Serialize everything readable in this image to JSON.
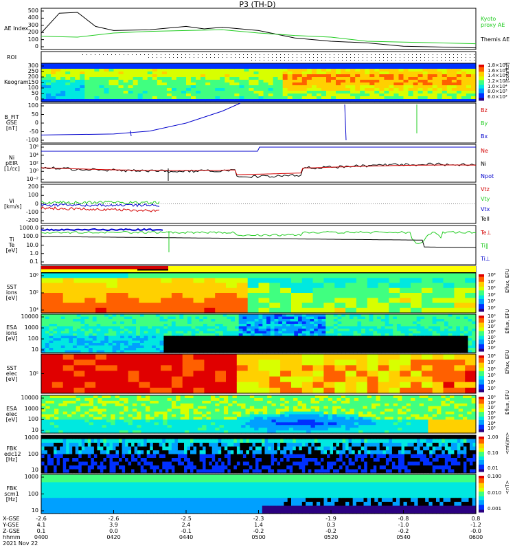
{
  "title": "P3 (TH-D)",
  "colors": {
    "red": "#d40000",
    "green": "#22cc22",
    "blue": "#0000cc",
    "black": "#000000",
    "spectro": [
      "#2a0080",
      "#0030ff",
      "#00a0ff",
      "#00e8e0",
      "#40ff80",
      "#d8ff00",
      "#ffd000",
      "#ff6000",
      "#e00000"
    ]
  },
  "panels": [
    {
      "id": "ae",
      "ylabel": "AE Index",
      "ticks": [
        "500",
        "400",
        "300",
        "200",
        "100",
        "0"
      ],
      "legend": [
        {
          "text": "Kyoto\nproxy AE",
          "color": "#22cc22"
        },
        {
          "text": "Themis AE",
          "color": "#000000"
        }
      ]
    },
    {
      "id": "roi",
      "ylabel": "ROI",
      "ticks": []
    },
    {
      "id": "keogram",
      "ylabel": "Keogram",
      "ticks": [
        "300",
        "250",
        "200",
        "150",
        "100",
        "50",
        "0"
      ],
      "colorbar": {
        "unit": "[counts]",
        "labels": [
          "1.8×10⁴",
          "1.6×10⁴",
          "1.4×10⁴",
          "1.2×10⁴",
          "1.0×10⁴",
          "8.0×10³",
          "6.0×10³"
        ]
      }
    },
    {
      "id": "bfield",
      "ylabel": "B_FIT\nGSE\n[nT]",
      "ticks": [
        "100",
        "50",
        "0",
        "-50",
        "-100"
      ],
      "legend": [
        {
          "text": "Bz",
          "color": "#d40000"
        },
        {
          "text": "By",
          "color": "#22cc22"
        },
        {
          "text": "Bx",
          "color": "#0000cc"
        }
      ]
    },
    {
      "id": "density",
      "ylabel": "Ni\npEIR\n[1/cc]",
      "ticks": [
        "10⁶",
        "10⁴",
        "10²",
        "10⁰",
        "10⁻²"
      ],
      "legend": [
        {
          "text": "Ne",
          "color": "#d40000"
        },
        {
          "text": "Ni",
          "color": "#000000"
        },
        {
          "text": "Npot",
          "color": "#0000cc"
        }
      ]
    },
    {
      "id": "velocity",
      "ylabel": "Vi\n[km/s]",
      "ticks": [
        "200",
        "100",
        "0",
        "-100",
        "-200"
      ],
      "legend": [
        {
          "text": "Vtz",
          "color": "#d40000"
        },
        {
          "text": "Vty",
          "color": "#22cc22"
        },
        {
          "text": "Vtx",
          "color": "#0000cc"
        },
        {
          "text": "Tell",
          "color": "#000000"
        }
      ]
    },
    {
      "id": "temp",
      "ylabel": "Ti\nTe\n[eV]",
      "ticks": [
        "1000.0",
        "100.0",
        "10.0",
        "1.0",
        "0.1"
      ],
      "legend": [
        {
          "text": "Te⊥",
          "color": "#d40000"
        },
        {
          "text": "Ti‖",
          "color": "#22cc22"
        },
        {
          "text": "Ti⊥",
          "color": "#0000cc"
        }
      ]
    },
    {
      "id": "mode",
      "ylabel": "",
      "ticks": []
    },
    {
      "id": "sst_i",
      "ylabel": "SST\nions\n[eV]",
      "ticks": [
        "10⁶",
        "10⁵",
        "10⁴"
      ],
      "colorbar": {
        "unit": "Eflux, EFU",
        "labels": [
          "10⁸",
          "10⁷",
          "10⁶",
          "10⁵",
          "10⁴",
          "10³"
        ]
      }
    },
    {
      "id": "esa_i",
      "ylabel": "ESA\nions\n[eV]",
      "ticks": [
        "10000",
        "1000",
        "100",
        "10"
      ],
      "colorbar": {
        "unit": "Eflux, EFU",
        "labels": [
          "10⁹",
          "10⁸",
          "10⁷",
          "10⁶",
          "10⁵",
          "10⁴",
          "10³"
        ]
      }
    },
    {
      "id": "sst_e",
      "ylabel": "SST\nelec\n[eV]",
      "ticks": [
        "10⁵"
      ],
      "colorbar": {
        "unit": "Eflux, EFU",
        "labels": [
          "10⁸",
          "10⁷",
          "10⁶",
          "10⁵",
          "10⁴",
          "10³"
        ]
      }
    },
    {
      "id": "esa_e",
      "ylabel": "ESA\nelec\n[eV]",
      "ticks": [
        "10000",
        "1000",
        "100",
        "10"
      ],
      "colorbar": {
        "unit": "Eflux, EFU",
        "labels": [
          "10⁹",
          "10⁸",
          "10⁷",
          "10⁶",
          "10⁵",
          "10⁴",
          "10³"
        ]
      }
    },
    {
      "id": "fbk_e",
      "ylabel": "FBK\nedc12\n[Hz]",
      "ticks": [
        "1000",
        "100",
        "10"
      ],
      "colorbar": {
        "unit": "<mV/m>",
        "labels": [
          "1.00",
          "0.10",
          "0.01"
        ]
      }
    },
    {
      "id": "fbk_b",
      "ylabel": "FBK\nscm1\n[Hz]",
      "ticks": [
        "1000",
        "100",
        "10"
      ],
      "colorbar": {
        "unit": "<nT>",
        "labels": [
          "0.100",
          "0.010",
          "0.001"
        ]
      }
    }
  ],
  "footer": {
    "row_labels": [
      "X-GSE",
      "Y-GSE",
      "Z-GSE",
      "hhmm",
      "2021 Nov 22"
    ],
    "columns": [
      [
        "-2.6",
        "4.1",
        "0.1",
        "0400"
      ],
      [
        "-2.6",
        "3.9",
        "0.0",
        "0420"
      ],
      [
        "-2.5",
        "2.4",
        "-0.1",
        "0440"
      ],
      [
        "-2.3",
        "1.4",
        "-0.2",
        "0500"
      ],
      [
        "-1.9",
        "0.3",
        "-0.2",
        "0520"
      ],
      [
        "-0.8",
        "-1.0",
        "-0.2",
        "0540"
      ],
      [
        "0.8",
        "-1.2",
        "-0.0",
        "0600"
      ]
    ]
  },
  "chart_data": {
    "type": "line",
    "title": "P3 (TH-D)",
    "x_axis": {
      "label": "hhmm",
      "ticks": [
        "0400",
        "0420",
        "0440",
        "0500",
        "0520",
        "0540",
        "0600"
      ],
      "range": [
        "0400",
        "0600"
      ]
    },
    "ae_index": {
      "ylim": [
        0,
        500
      ],
      "series": [
        {
          "name": "Themis AE",
          "x": [
            "0400",
            "0405",
            "0410",
            "0415",
            "0420",
            "0430",
            "0440",
            "0445",
            "0450",
            "0500",
            "0510",
            "0520",
            "0530",
            "0540",
            "0550",
            "0600"
          ],
          "values": [
            200,
            440,
            450,
            280,
            230,
            240,
            280,
            250,
            270,
            230,
            140,
            100,
            80,
            40,
            30,
            20
          ]
        },
        {
          "name": "Kyoto proxy AE",
          "x": [
            "0400",
            "0410",
            "0420",
            "0430",
            "0440",
            "0450",
            "0500",
            "0510",
            "0520",
            "0530",
            "0540",
            "0550",
            "0600"
          ],
          "values": [
            160,
            150,
            200,
            220,
            230,
            240,
            200,
            170,
            150,
            100,
            90,
            80,
            70
          ]
        }
      ]
    },
    "b_fit": {
      "ylim": [
        -100,
        100
      ],
      "series": [
        {
          "name": "Bx",
          "x": [
            "0400",
            "0420",
            "0430",
            "0440",
            "0450",
            "0455"
          ],
          "values": [
            -60,
            -55,
            -40,
            0,
            60,
            100
          ]
        }
      ]
    },
    "velocity": {
      "ylim": [
        -200,
        200
      ]
    },
    "temperature": {
      "ylim": [
        0.1,
        1000.0
      ],
      "scale": "log"
    }
  }
}
